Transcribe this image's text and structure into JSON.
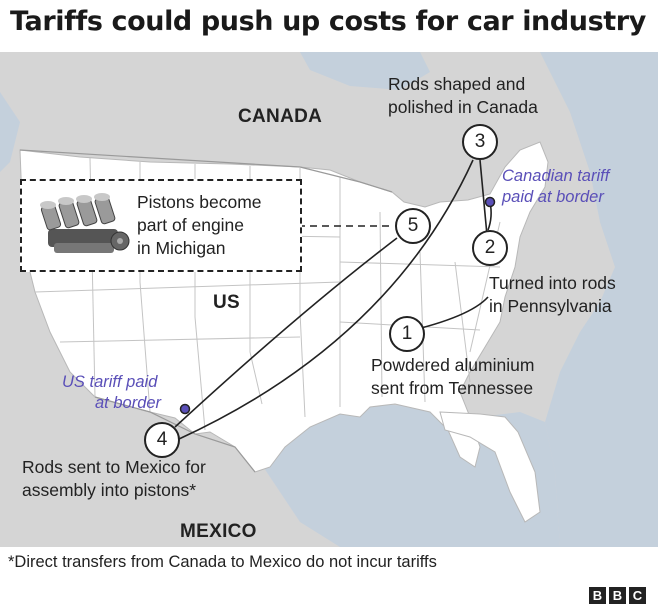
{
  "title": "Tariffs could push up costs for car industry",
  "countries": {
    "canada": "CANADA",
    "us": "US",
    "mexico": "MEXICO"
  },
  "steps": [
    {
      "number": "1",
      "label_lines": [
        "Powdered aluminium",
        "sent from Tennessee"
      ]
    },
    {
      "number": "2",
      "label_lines": [
        "Turned into rods",
        "in Pennsylvania"
      ]
    },
    {
      "number": "3",
      "label_lines": [
        "Rods shaped and",
        "polished in Canada"
      ]
    },
    {
      "number": "4",
      "label_lines": [
        "Rods sent to Mexico for",
        "assembly into pistons*"
      ]
    },
    {
      "number": "5",
      "label_lines": [
        "Pistons become",
        "part of engine",
        "in Michigan"
      ]
    }
  ],
  "tariffs": {
    "us": [
      "US tariff paid",
      "at border"
    ],
    "canada": [
      "Canadian tariff",
      "paid at border"
    ]
  },
  "footnote": "*Direct transfers from Canada to Mexico do not incur tariffs",
  "logo_letters": [
    "B",
    "B",
    "C"
  ],
  "colors": {
    "tariff": "#5a4fb8",
    "land_us": "#ffffff",
    "land_other": "#d5d5d5",
    "water": "#c4d0dc",
    "route": "#222222"
  },
  "icons": {
    "engine": "engine-icon"
  }
}
